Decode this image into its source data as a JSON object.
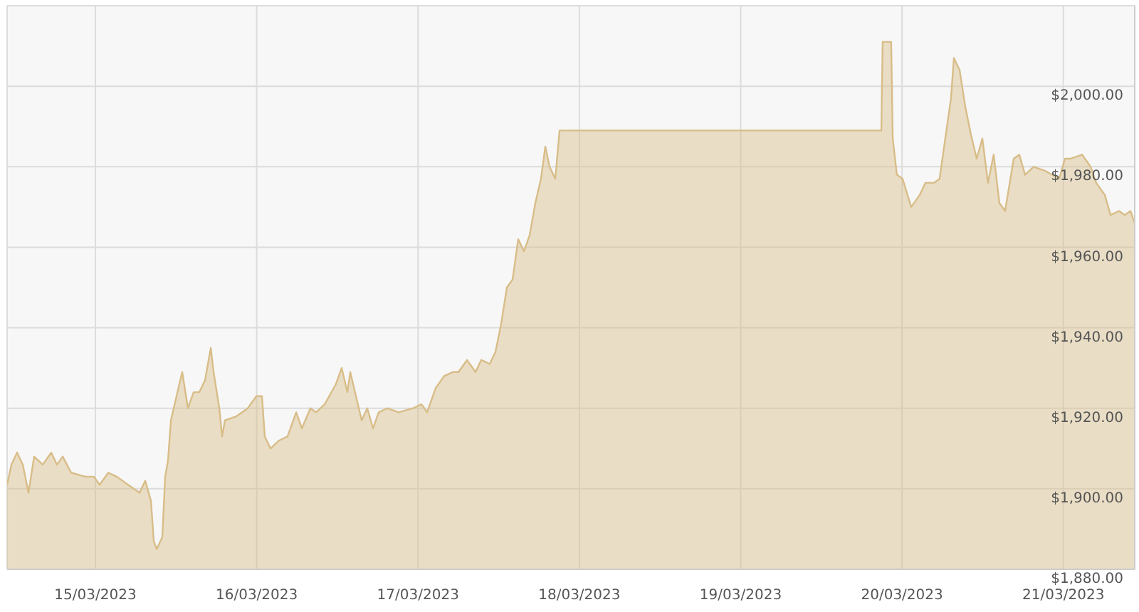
{
  "chart_data": {
    "type": "area",
    "x": [
      "2023-03-14T10:52",
      "2023-03-14T11:30",
      "2023-03-14T12:21",
      "2023-03-14T13:12",
      "2023-03-14T14:03",
      "2023-03-14T14:53",
      "2023-03-14T16:10",
      "2023-03-14T17:26",
      "2023-03-14T18:17",
      "2023-03-14T19:08",
      "2023-03-14T20:24",
      "2023-03-14T22:31",
      "2023-03-14T23:47",
      "2023-03-15T00:38",
      "2023-03-15T01:55",
      "2023-03-15T03:11",
      "2023-03-15T04:52",
      "2023-03-15T06:34",
      "2023-03-15T07:25",
      "2023-03-15T08:16",
      "2023-03-15T08:41",
      "2023-03-15T09:07",
      "2023-03-15T09:57",
      "2023-03-15T10:23",
      "2023-03-15T10:48",
      "2023-03-15T11:14",
      "2023-03-15T12:04",
      "2023-03-15T12:55",
      "2023-03-15T13:46",
      "2023-03-15T14:37",
      "2023-03-15T15:28",
      "2023-03-15T16:19",
      "2023-03-15T17:10",
      "2023-03-15T17:35",
      "2023-03-15T18:26",
      "2023-03-15T18:51",
      "2023-03-15T19:16",
      "2023-03-15T20:58",
      "2023-03-15T22:40",
      "2023-03-15T23:56",
      "2023-03-16T00:47",
      "2023-03-16T01:12",
      "2023-03-16T02:03",
      "2023-03-16T03:19",
      "2023-03-16T04:35",
      "2023-03-16T05:52",
      "2023-03-16T06:43",
      "2023-03-16T07:59",
      "2023-03-16T08:50",
      "2023-03-16T10:06",
      "2023-03-16T11:47",
      "2023-03-16T12:38",
      "2023-03-16T13:29",
      "2023-03-16T13:55",
      "2023-03-16T14:46",
      "2023-03-16T15:37",
      "2023-03-16T16:27",
      "2023-03-16T17:18",
      "2023-03-16T18:09",
      "2023-03-16T19:25",
      "2023-03-16T21:07",
      "2023-03-16T23:14",
      "2023-03-17T00:30",
      "2023-03-17T01:21",
      "2023-03-17T02:37",
      "2023-03-17T03:53",
      "2023-03-17T05:10",
      "2023-03-17T06:01",
      "2023-03-17T07:17",
      "2023-03-17T08:33",
      "2023-03-17T09:24",
      "2023-03-17T10:40",
      "2023-03-17T11:31",
      "2023-03-17T12:22",
      "2023-03-17T13:13",
      "2023-03-17T14:04",
      "2023-03-17T14:54",
      "2023-03-17T15:45",
      "2023-03-17T16:36",
      "2023-03-17T17:27",
      "2023-03-17T18:17",
      "2023-03-17T18:56",
      "2023-03-17T19:34",
      "2023-03-17T20:25",
      "2023-03-17T21:03",
      "2023-03-19T20:55",
      "2023-03-19T21:07",
      "2023-03-19T22:23",
      "2023-03-19T22:37",
      "2023-03-19T23:14",
      "2023-03-20T00:05",
      "2023-03-20T01:22",
      "2023-03-20T02:38",
      "2023-03-20T03:28",
      "2023-03-20T04:45",
      "2023-03-20T05:35",
      "2023-03-20T06:26",
      "2023-03-20T07:17",
      "2023-03-20T07:43",
      "2023-03-20T08:34",
      "2023-03-20T09:24",
      "2023-03-20T10:15",
      "2023-03-20T11:06",
      "2023-03-20T11:57",
      "2023-03-20T12:47",
      "2023-03-20T13:38",
      "2023-03-20T14:29",
      "2023-03-20T15:20",
      "2023-03-20T16:37",
      "2023-03-20T17:27",
      "2023-03-20T18:18",
      "2023-03-20T19:34",
      "2023-03-20T21:16",
      "2023-03-20T23:23",
      "2023-03-21T00:14",
      "2023-03-21T01:05",
      "2023-03-21T02:47",
      "2023-03-21T04:03",
      "2023-03-21T04:53",
      "2023-03-21T06:10",
      "2023-03-21T07:01",
      "2023-03-21T08:17",
      "2023-03-21T09:08",
      "2023-03-21T09:59",
      "2023-03-21T10:37"
    ],
    "series": [
      {
        "color": "#d8bd88",
        "values": [
          1901,
          1906,
          1909,
          1906,
          1899,
          1908,
          1906,
          1909,
          1906,
          1908,
          1904,
          1903,
          1903,
          1901,
          1904,
          1903,
          1901,
          1899,
          1902,
          1897,
          1887,
          1885,
          1888,
          1903,
          1907,
          1917,
          1923,
          1929,
          1920,
          1924,
          1924,
          1927,
          1935,
          1929,
          1920,
          1913,
          1917,
          1918,
          1920,
          1923,
          1923,
          1913,
          1910,
          1912,
          1913,
          1919,
          1915,
          1920,
          1919,
          1921,
          1926,
          1930,
          1924,
          1929,
          1923,
          1917,
          1920,
          1915,
          1919,
          1920,
          1919,
          1920,
          1921,
          1919,
          1925,
          1928,
          1929,
          1929,
          1932,
          1929,
          1932,
          1931,
          1934,
          1941,
          1950,
          1952,
          1962,
          1959,
          1963,
          1971,
          1977,
          1985,
          1980,
          1977,
          1989,
          1989,
          2011,
          2011,
          1987,
          1978,
          1977,
          1970,
          1973,
          1976,
          1976,
          1977,
          1987,
          1997,
          2007,
          2004,
          1995,
          1988,
          1982,
          1987,
          1976,
          1983,
          1971,
          1969,
          1982,
          1983,
          1978,
          1980,
          1979,
          1977,
          1982,
          1982,
          1983,
          1980,
          1976,
          1973,
          1968,
          1969,
          1968,
          1969,
          1966
        ]
      }
    ],
    "xlim": [
      "2023-03-14T10:52",
      "2023-03-21T10:37"
    ],
    "xticks": [
      {
        "value": "2023-03-15",
        "label": "15/03/2023"
      },
      {
        "value": "2023-03-16",
        "label": "16/03/2023"
      },
      {
        "value": "2023-03-17",
        "label": "17/03/2023"
      },
      {
        "value": "2023-03-18",
        "label": "18/03/2023"
      },
      {
        "value": "2023-03-19",
        "label": "19/03/2023"
      },
      {
        "value": "2023-03-20",
        "label": "20/03/2023"
      },
      {
        "value": "2023-03-21",
        "label": "21/03/2023"
      }
    ],
    "ylim": [
      1880,
      2020
    ],
    "yticks": [
      {
        "value": 1880,
        "label": "$1,880.00"
      },
      {
        "value": 1900,
        "label": "$1,900.00"
      },
      {
        "value": 1920,
        "label": "$1,920.00"
      },
      {
        "value": 1940,
        "label": "$1,940.00"
      },
      {
        "value": 1960,
        "label": "$1,960.00"
      },
      {
        "value": 1980,
        "label": "$1,980.00"
      },
      {
        "value": 2000,
        "label": "$2,000.00"
      }
    ],
    "grid": true
  }
}
